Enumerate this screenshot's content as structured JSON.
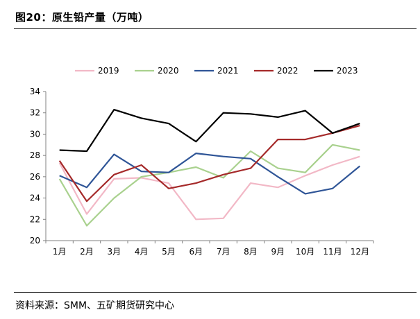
{
  "figure": {
    "title": "图20：原生铅产量（万吨）",
    "source": "资料来源：SMM、五矿期货研究中心"
  },
  "chart_data": {
    "type": "line",
    "title": "",
    "xlabel": "",
    "ylabel": "",
    "categories": [
      "1月",
      "2月",
      "3月",
      "4月",
      "5月",
      "6月",
      "7月",
      "8月",
      "9月",
      "10月",
      "11月",
      "12月"
    ],
    "ylim": [
      20,
      34
    ],
    "yticks": [
      20,
      22,
      24,
      26,
      28,
      30,
      32,
      34
    ],
    "grid": false,
    "legend_position": "top",
    "series": [
      {
        "name": "2019",
        "color": "#f2b8c6",
        "values": [
          27.3,
          22.5,
          25.8,
          25.9,
          25.4,
          22.0,
          22.1,
          25.4,
          25.0,
          26.1,
          27.1,
          27.9
        ]
      },
      {
        "name": "2020",
        "color": "#a9d18e",
        "values": [
          25.8,
          21.4,
          24.0,
          26.0,
          26.4,
          26.9,
          25.9,
          28.4,
          26.8,
          26.4,
          29.0,
          28.5
        ]
      },
      {
        "name": "2021",
        "color": "#2f5597",
        "values": [
          26.1,
          25.0,
          28.1,
          26.5,
          26.4,
          28.2,
          27.9,
          27.7,
          26.0,
          24.4,
          24.9,
          27.0
        ]
      },
      {
        "name": "2022",
        "color": "#a52a2a",
        "values": [
          27.5,
          23.7,
          26.2,
          27.1,
          24.9,
          25.4,
          26.2,
          26.8,
          29.5,
          29.5,
          30.1,
          30.8
        ]
      },
      {
        "name": "2023",
        "color": "#000000",
        "values": [
          28.5,
          28.4,
          32.3,
          31.5,
          31.0,
          29.3,
          32.0,
          31.9,
          31.6,
          32.2,
          30.1,
          31.0
        ]
      }
    ]
  }
}
